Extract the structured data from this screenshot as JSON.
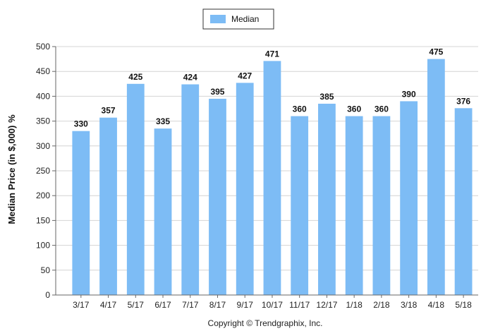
{
  "chart_data": {
    "type": "bar",
    "categories": [
      "3/17",
      "4/17",
      "5/17",
      "6/17",
      "7/17",
      "8/17",
      "9/17",
      "10/17",
      "11/17",
      "12/17",
      "1/18",
      "2/18",
      "3/18",
      "4/18",
      "5/18"
    ],
    "series": [
      {
        "name": "Median",
        "values": [
          330,
          357,
          425,
          335,
          424,
          395,
          427,
          471,
          360,
          385,
          360,
          360,
          390,
          475,
          376
        ]
      }
    ],
    "title": "",
    "xlabel": "",
    "ylabel": "Median Price (in $,000) %",
    "ylim": [
      0,
      500
    ],
    "yticks": [
      0,
      50,
      100,
      150,
      200,
      250,
      300,
      350,
      400,
      450,
      500
    ],
    "grid": true,
    "legend_position": "top-center",
    "data_labels": true,
    "bar_color": "#7DBCF5",
    "footer": "Copyright © Trendgraphix, Inc."
  }
}
